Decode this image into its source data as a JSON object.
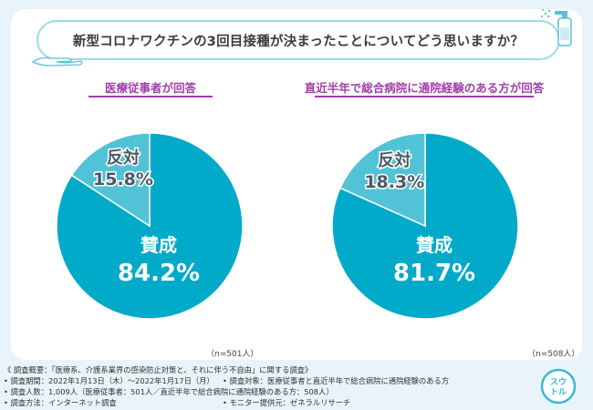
{
  "title": "新型コロナワクチンの3回目接種が決まったことについてどう思いますか？",
  "colors": {
    "agree": "#00aac8",
    "disagree": "#52c3d6",
    "accent": "#a13ea8",
    "title_border": "#9adbe6"
  },
  "chart_data": [
    {
      "type": "pie",
      "title": "医療従事者が回答",
      "labels": [
        "賛成",
        "反対"
      ],
      "values": [
        84.2,
        15.8
      ],
      "value_texts": [
        "84.2%",
        "15.8%"
      ],
      "n": "（n=501人）"
    },
    {
      "type": "pie",
      "title": "直近半年で総合病院に通院経験のある方が回答",
      "labels": [
        "賛成",
        "反対"
      ],
      "values": [
        81.7,
        18.3
      ],
      "value_texts": [
        "81.7%",
        "18.3%"
      ],
      "n": "（n=508人）"
    }
  ],
  "footer": {
    "overview": "《 調査概要：「医療系、介護系業界の感染防止対策と、それに伴う不自由」に関する調査》",
    "period": "• 調査期間：2022年1月13日（木）〜2022年1月17日（月）",
    "target": "• 調査対象：医療従事者と直近半年で総合病院に通院経験のある方",
    "count": "• 調査人数：1,009人（医療従事者：501人／直近半年で総合病院に通院経験のある方：508人）",
    "method": "• 調査方法：インターネット調査",
    "provider": "• モニター提供元：ゼネラルリサーチ"
  },
  "logo": {
    "line1": "スウ",
    "line2": "トル"
  }
}
